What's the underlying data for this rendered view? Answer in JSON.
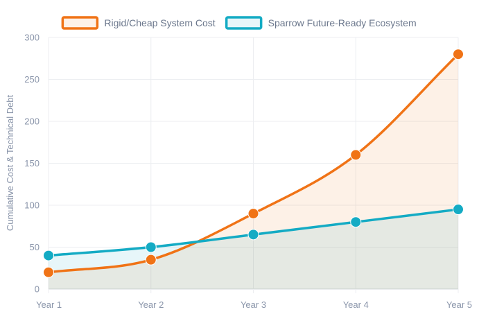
{
  "chart_data": {
    "type": "line",
    "title": "",
    "xlabel": "",
    "ylabel": "Cumulative Cost & Technical Debt",
    "categories": [
      "Year 1",
      "Year 2",
      "Year 3",
      "Year 4",
      "Year 5"
    ],
    "ylim": [
      0,
      300
    ],
    "yticks": [
      0,
      50,
      100,
      150,
      200,
      250,
      300
    ],
    "grid": true,
    "legend_position": "top-center",
    "series": [
      {
        "name": "Rigid/Cheap System Cost",
        "values": [
          20,
          35,
          90,
          160,
          280
        ],
        "color": "#f07316",
        "fill": "rgba(240,115,22,0.10)"
      },
      {
        "name": "Sparrow Future-Ready Ecosystem",
        "values": [
          40,
          50,
          65,
          80,
          95
        ],
        "color": "#14abc4",
        "fill": "rgba(20,171,196,0.10)"
      }
    ]
  }
}
